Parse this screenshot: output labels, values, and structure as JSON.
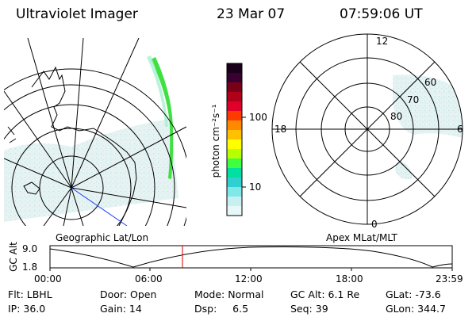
{
  "header": {
    "instrument": "Ultraviolet Imager",
    "date": "23 Mar 07",
    "time": "07:59:06 UT"
  },
  "colorbar": {
    "label": "photon cm⁻²s⁻¹",
    "tick_labels": [
      "100",
      "10"
    ],
    "colors": [
      "#1a001a",
      "#3a0030",
      "#7a0018",
      "#b0001a",
      "#e0002a",
      "#ff3a00",
      "#ff8a00",
      "#ffc000",
      "#ffff00",
      "#b8ff00",
      "#40ff40",
      "#00e0a0",
      "#30d0d0",
      "#80e8e8",
      "#c8f0f0",
      "#e8f8f8"
    ]
  },
  "left_panel": {
    "label": "Geographic Lat/Lon"
  },
  "right_panel": {
    "label": "Apex MLat/MLT",
    "mlt_labels": {
      "top": "12",
      "left": "18",
      "right": "6",
      "bottom": "0"
    },
    "mlat_labels": [
      "60",
      "70",
      "80"
    ]
  },
  "orbit_plot": {
    "ylabel": "GC Alt",
    "y_ticks": [
      "9.0",
      "1.8"
    ],
    "x_ticks": [
      "00:00",
      "06:00",
      "12:00",
      "18:00",
      "23:59"
    ],
    "marker_color": "#d00000"
  },
  "info": {
    "flt": "Flt: LBHL",
    "ip": "IP: 36.0",
    "door": "Door: Open",
    "gain": "Gain: 14",
    "mode": "Mode: Normal",
    "dsp": "Dsp:     6.5",
    "gc_alt": "GC Alt: 6.1 Re",
    "seq": "Seq: 39",
    "glat": "GLat: -73.6",
    "glon": "GLon: 344.7"
  }
}
